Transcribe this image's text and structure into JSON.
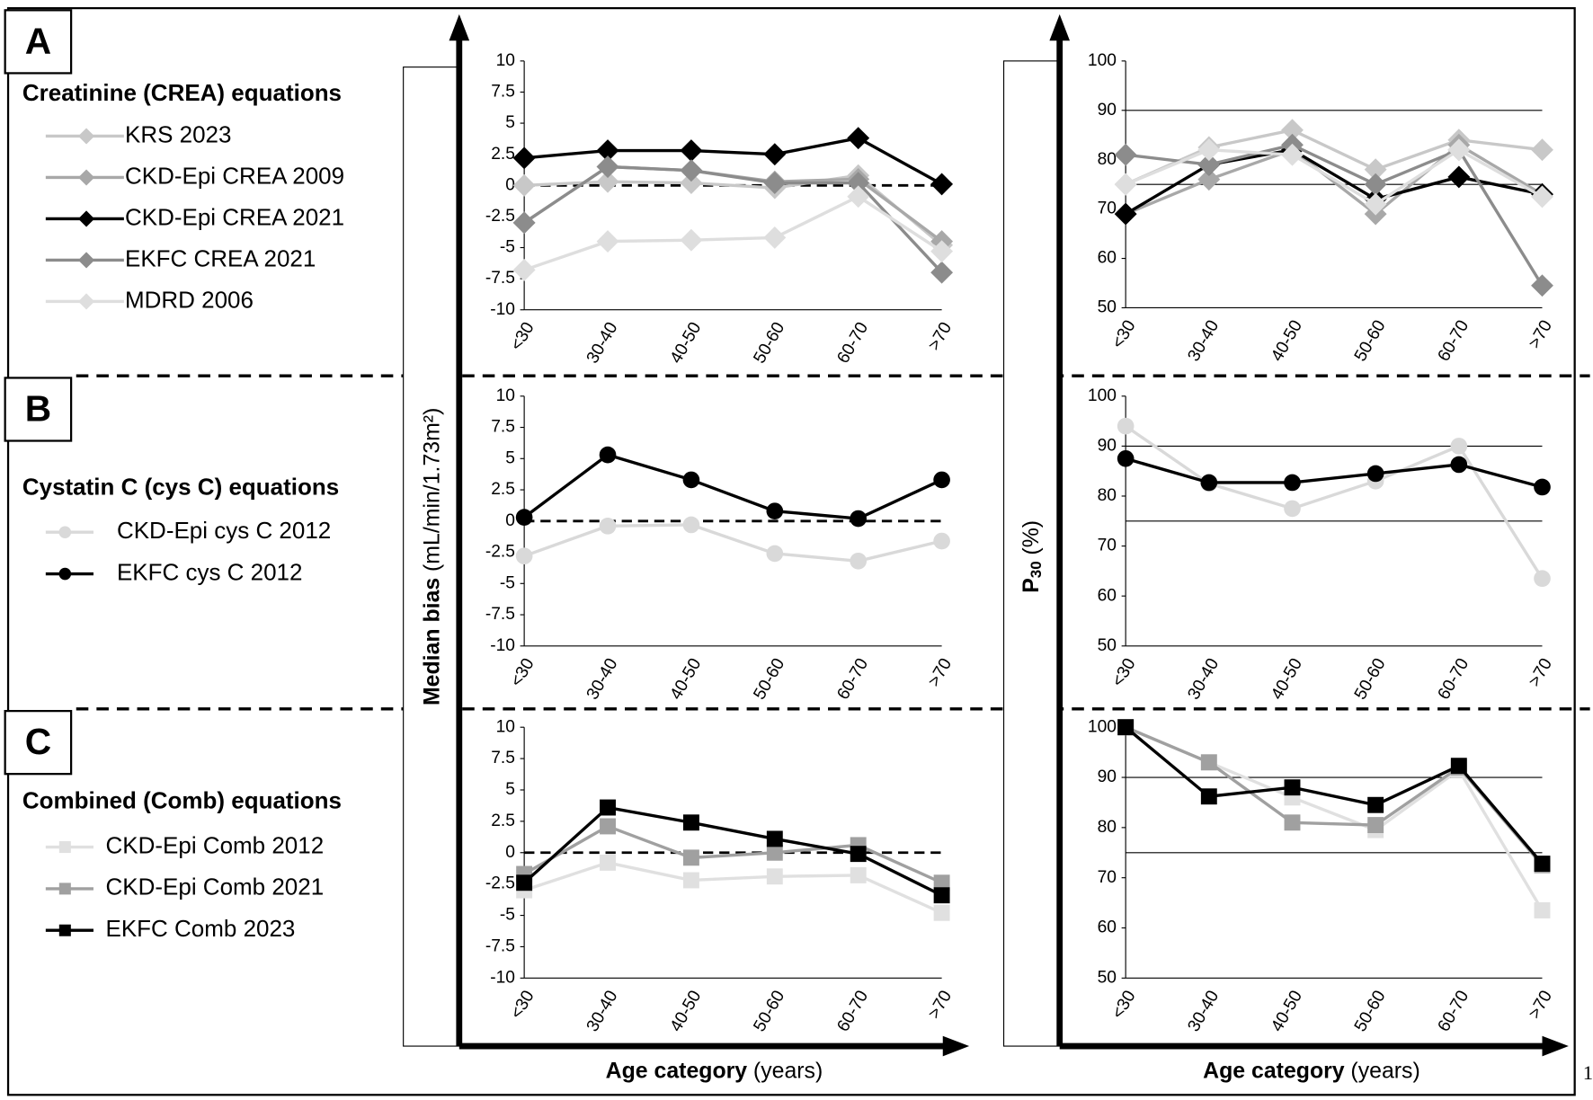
{
  "panels": [
    {
      "label": "A",
      "title": "Creatinine (CREA) equations"
    },
    {
      "label": "B",
      "title": "Cystatin C (cys C) equations"
    },
    {
      "label": "C",
      "title": "Combined (Comb) equations"
    }
  ],
  "bias_axis_label": {
    "main": "Median bias",
    "unit": "(mL/min/1.73m²)"
  },
  "p30_axis_label": {
    "main": "P",
    "subscript": "30",
    "unit": "(%)"
  },
  "x_axis_label": {
    "main": "Age category",
    "unit": "(years)"
  },
  "page_number": "1",
  "chart_data": [
    {
      "type": "line",
      "categories": [
        "<30",
        "30-40",
        "40-50",
        "50-60",
        "60-70",
        ">70"
      ],
      "ylim": [
        -10,
        10
      ],
      "yticks": [
        -10,
        -7.5,
        -5,
        -2.5,
        0,
        2.5,
        5,
        7.5,
        10
      ],
      "reference_lines": {
        "values": [
          0
        ],
        "style": "dashed"
      },
      "marker": "diamond",
      "series": [
        {
          "name": "KRS 2023",
          "color": "#c8c8c8",
          "values": [
            0,
            0.3,
            0.2,
            -0.2,
            0.8,
            -4.8
          ]
        },
        {
          "name": "CKD-Epi CREA 2009",
          "color": "#a8a8a8",
          "values": [
            -3,
            1.5,
            1.2,
            0.3,
            0.5,
            -4.5
          ]
        },
        {
          "name": "CKD-Epi CREA 2021",
          "color": "#000000",
          "values": [
            2.2,
            2.8,
            2.8,
            2.5,
            3.8,
            0.1
          ]
        },
        {
          "name": "EKFC CREA 2021",
          "color": "#8c8c8c",
          "values": [
            -3,
            1.5,
            1.2,
            0.2,
            0.2,
            -7
          ]
        },
        {
          "name": "MDRD 2006",
          "color": "#dedede",
          "values": [
            -6.8,
            -4.5,
            -4.4,
            -4.2,
            -0.9,
            -5.3
          ]
        }
      ]
    },
    {
      "type": "line",
      "categories": [
        "<30",
        "30-40",
        "40-50",
        "50-60",
        "60-70",
        ">70"
      ],
      "ylim": [
        50,
        100
      ],
      "yticks": [
        50,
        60,
        70,
        80,
        90,
        100
      ],
      "reference_lines": {
        "values": [
          90,
          75
        ],
        "style": "solid"
      },
      "marker": "diamond",
      "series": [
        {
          "color": "#c8c8c8",
          "values": [
            75,
            82.5,
            86,
            78,
            84,
            82
          ]
        },
        {
          "color": "#a8a8a8",
          "values": [
            69,
            76,
            82,
            69,
            83,
            73
          ]
        },
        {
          "color": "#000000",
          "values": [
            69,
            79,
            82,
            72,
            76.5,
            73
          ]
        },
        {
          "color": "#8c8c8c",
          "values": [
            81,
            79,
            83,
            75,
            82,
            54.5
          ]
        },
        {
          "color": "#dedede",
          "values": [
            75,
            82,
            81,
            71,
            82,
            72.5
          ]
        }
      ]
    },
    {
      "type": "line",
      "categories": [
        "<30",
        "30-40",
        "40-50",
        "50-60",
        "60-70",
        ">70"
      ],
      "ylim": [
        -10,
        10
      ],
      "yticks": [
        -10,
        -7.5,
        -5,
        -2.5,
        0,
        2.5,
        5,
        7.5,
        10
      ],
      "reference_lines": {
        "values": [
          0
        ],
        "style": "dashed"
      },
      "marker": "circle",
      "series": [
        {
          "name": "CKD-Epi cys C 2012",
          "color": "#d9d9d9",
          "values": [
            -2.8,
            -0.4,
            -0.3,
            -2.6,
            -3.2,
            -1.6
          ]
        },
        {
          "name": "EKFC cys C 2012",
          "color": "#000000",
          "values": [
            0.3,
            5.3,
            3.3,
            0.8,
            0.2,
            3.3
          ]
        }
      ]
    },
    {
      "type": "line",
      "categories": [
        "<30",
        "30-40",
        "40-50",
        "50-60",
        "60-70",
        ">70"
      ],
      "ylim": [
        50,
        100
      ],
      "yticks": [
        50,
        60,
        70,
        80,
        90,
        100
      ],
      "reference_lines": {
        "values": [
          90,
          75
        ],
        "style": "solid"
      },
      "marker": "circle",
      "series": [
        {
          "color": "#d9d9d9",
          "values": [
            94,
            82.5,
            77.5,
            83,
            90,
            63.5
          ]
        },
        {
          "color": "#000000",
          "values": [
            87.5,
            82.7,
            82.7,
            84.5,
            86.3,
            81.8
          ]
        }
      ]
    },
    {
      "type": "line",
      "categories": [
        "<30",
        "30-40",
        "40-50",
        "50-60",
        "60-70",
        ">70"
      ],
      "ylim": [
        -10,
        10
      ],
      "yticks": [
        -10,
        -7.5,
        -5,
        -2.5,
        0,
        2.5,
        5,
        7.5,
        10
      ],
      "reference_lines": {
        "values": [
          0
        ],
        "style": "dashed"
      },
      "marker": "square",
      "series": [
        {
          "name": "CKD-Epi Comb 2012",
          "color": "#e0e0e0",
          "values": [
            -3,
            -0.8,
            -2.2,
            -1.9,
            -1.8,
            -4.8
          ]
        },
        {
          "name": "CKD-Epi Comb 2021",
          "color": "#a0a0a0",
          "values": [
            -1.7,
            2.1,
            -0.4,
            0,
            0.6,
            -2.4
          ]
        },
        {
          "name": "EKFC Comb 2023",
          "color": "#000000",
          "values": [
            -2.4,
            3.6,
            2.4,
            1.1,
            -0.1,
            -3.4
          ]
        }
      ]
    },
    {
      "type": "line",
      "categories": [
        "<30",
        "30-40",
        "40-50",
        "50-60",
        "60-70",
        ">70"
      ],
      "ylim": [
        50,
        100
      ],
      "yticks": [
        50,
        60,
        70,
        80,
        90,
        100
      ],
      "reference_lines": {
        "values": [
          90,
          75
        ],
        "style": "solid"
      },
      "marker": "square",
      "series": [
        {
          "color": "#e0e0e0",
          "values": [
            100,
            93,
            86,
            79.5,
            91.5,
            63.5
          ]
        },
        {
          "color": "#a0a0a0",
          "values": [
            100,
            93,
            81,
            80.5,
            92,
            72.5
          ]
        },
        {
          "color": "#000000",
          "values": [
            100,
            86.2,
            88,
            84.5,
            92.3,
            72.8
          ]
        }
      ]
    }
  ]
}
